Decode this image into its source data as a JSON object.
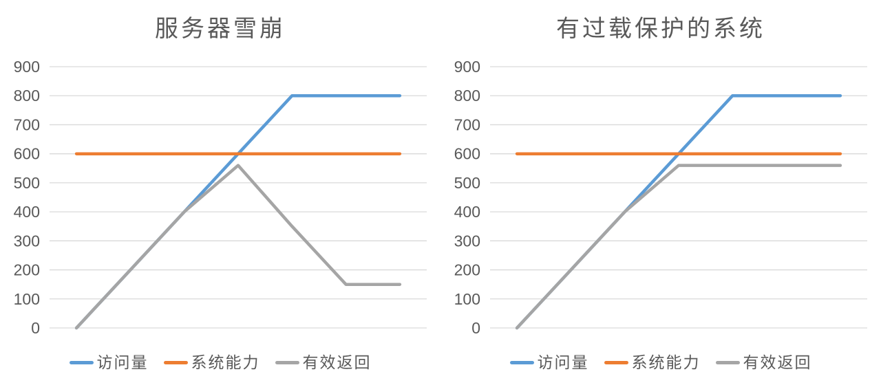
{
  "style": {
    "background_color": "#FFFFFF",
    "text_color": "#595959",
    "gridline_color": "#D9D9D9",
    "series_colors": {
      "blue": "#5B9BD5",
      "orange": "#ED7D31",
      "gray": "#A5A5A5"
    }
  },
  "chart_data": [
    {
      "type": "line",
      "title": "服务器雪崩",
      "x": [
        1,
        2,
        3,
        4,
        5,
        6,
        7
      ],
      "x_tick_labels_visible": false,
      "ylim": [
        0,
        900
      ],
      "ytick_step": 100,
      "ytick_labels": [
        "0",
        "100",
        "200",
        "300",
        "400",
        "500",
        "600",
        "700",
        "800",
        "900"
      ],
      "grid": true,
      "legend_position": "bottom",
      "series": [
        {
          "name": "访问量",
          "color": "#5B9BD5",
          "values": [
            0,
            200,
            400,
            600,
            800,
            800,
            800
          ]
        },
        {
          "name": "系统能力",
          "color": "#ED7D31",
          "values": [
            600,
            600,
            600,
            600,
            600,
            600,
            600
          ]
        },
        {
          "name": "有效返回",
          "color": "#A5A5A5",
          "values": [
            0,
            200,
            400,
            560,
            350,
            150,
            150
          ]
        }
      ]
    },
    {
      "type": "line",
      "title": "有过载保护的系统",
      "x": [
        1,
        2,
        3,
        4,
        5,
        6,
        7
      ],
      "x_tick_labels_visible": false,
      "ylim": [
        0,
        900
      ],
      "ytick_step": 100,
      "ytick_labels": [
        "0",
        "100",
        "200",
        "300",
        "400",
        "500",
        "600",
        "700",
        "800",
        "900"
      ],
      "grid": true,
      "legend_position": "bottom",
      "series": [
        {
          "name": "访问量",
          "color": "#5B9BD5",
          "values": [
            0,
            200,
            400,
            600,
            800,
            800,
            800
          ]
        },
        {
          "name": "系统能力",
          "color": "#ED7D31",
          "values": [
            600,
            600,
            600,
            600,
            600,
            600,
            600
          ]
        },
        {
          "name": "有效返回",
          "color": "#A5A5A5",
          "values": [
            0,
            200,
            400,
            560,
            560,
            560,
            560
          ]
        }
      ]
    }
  ]
}
